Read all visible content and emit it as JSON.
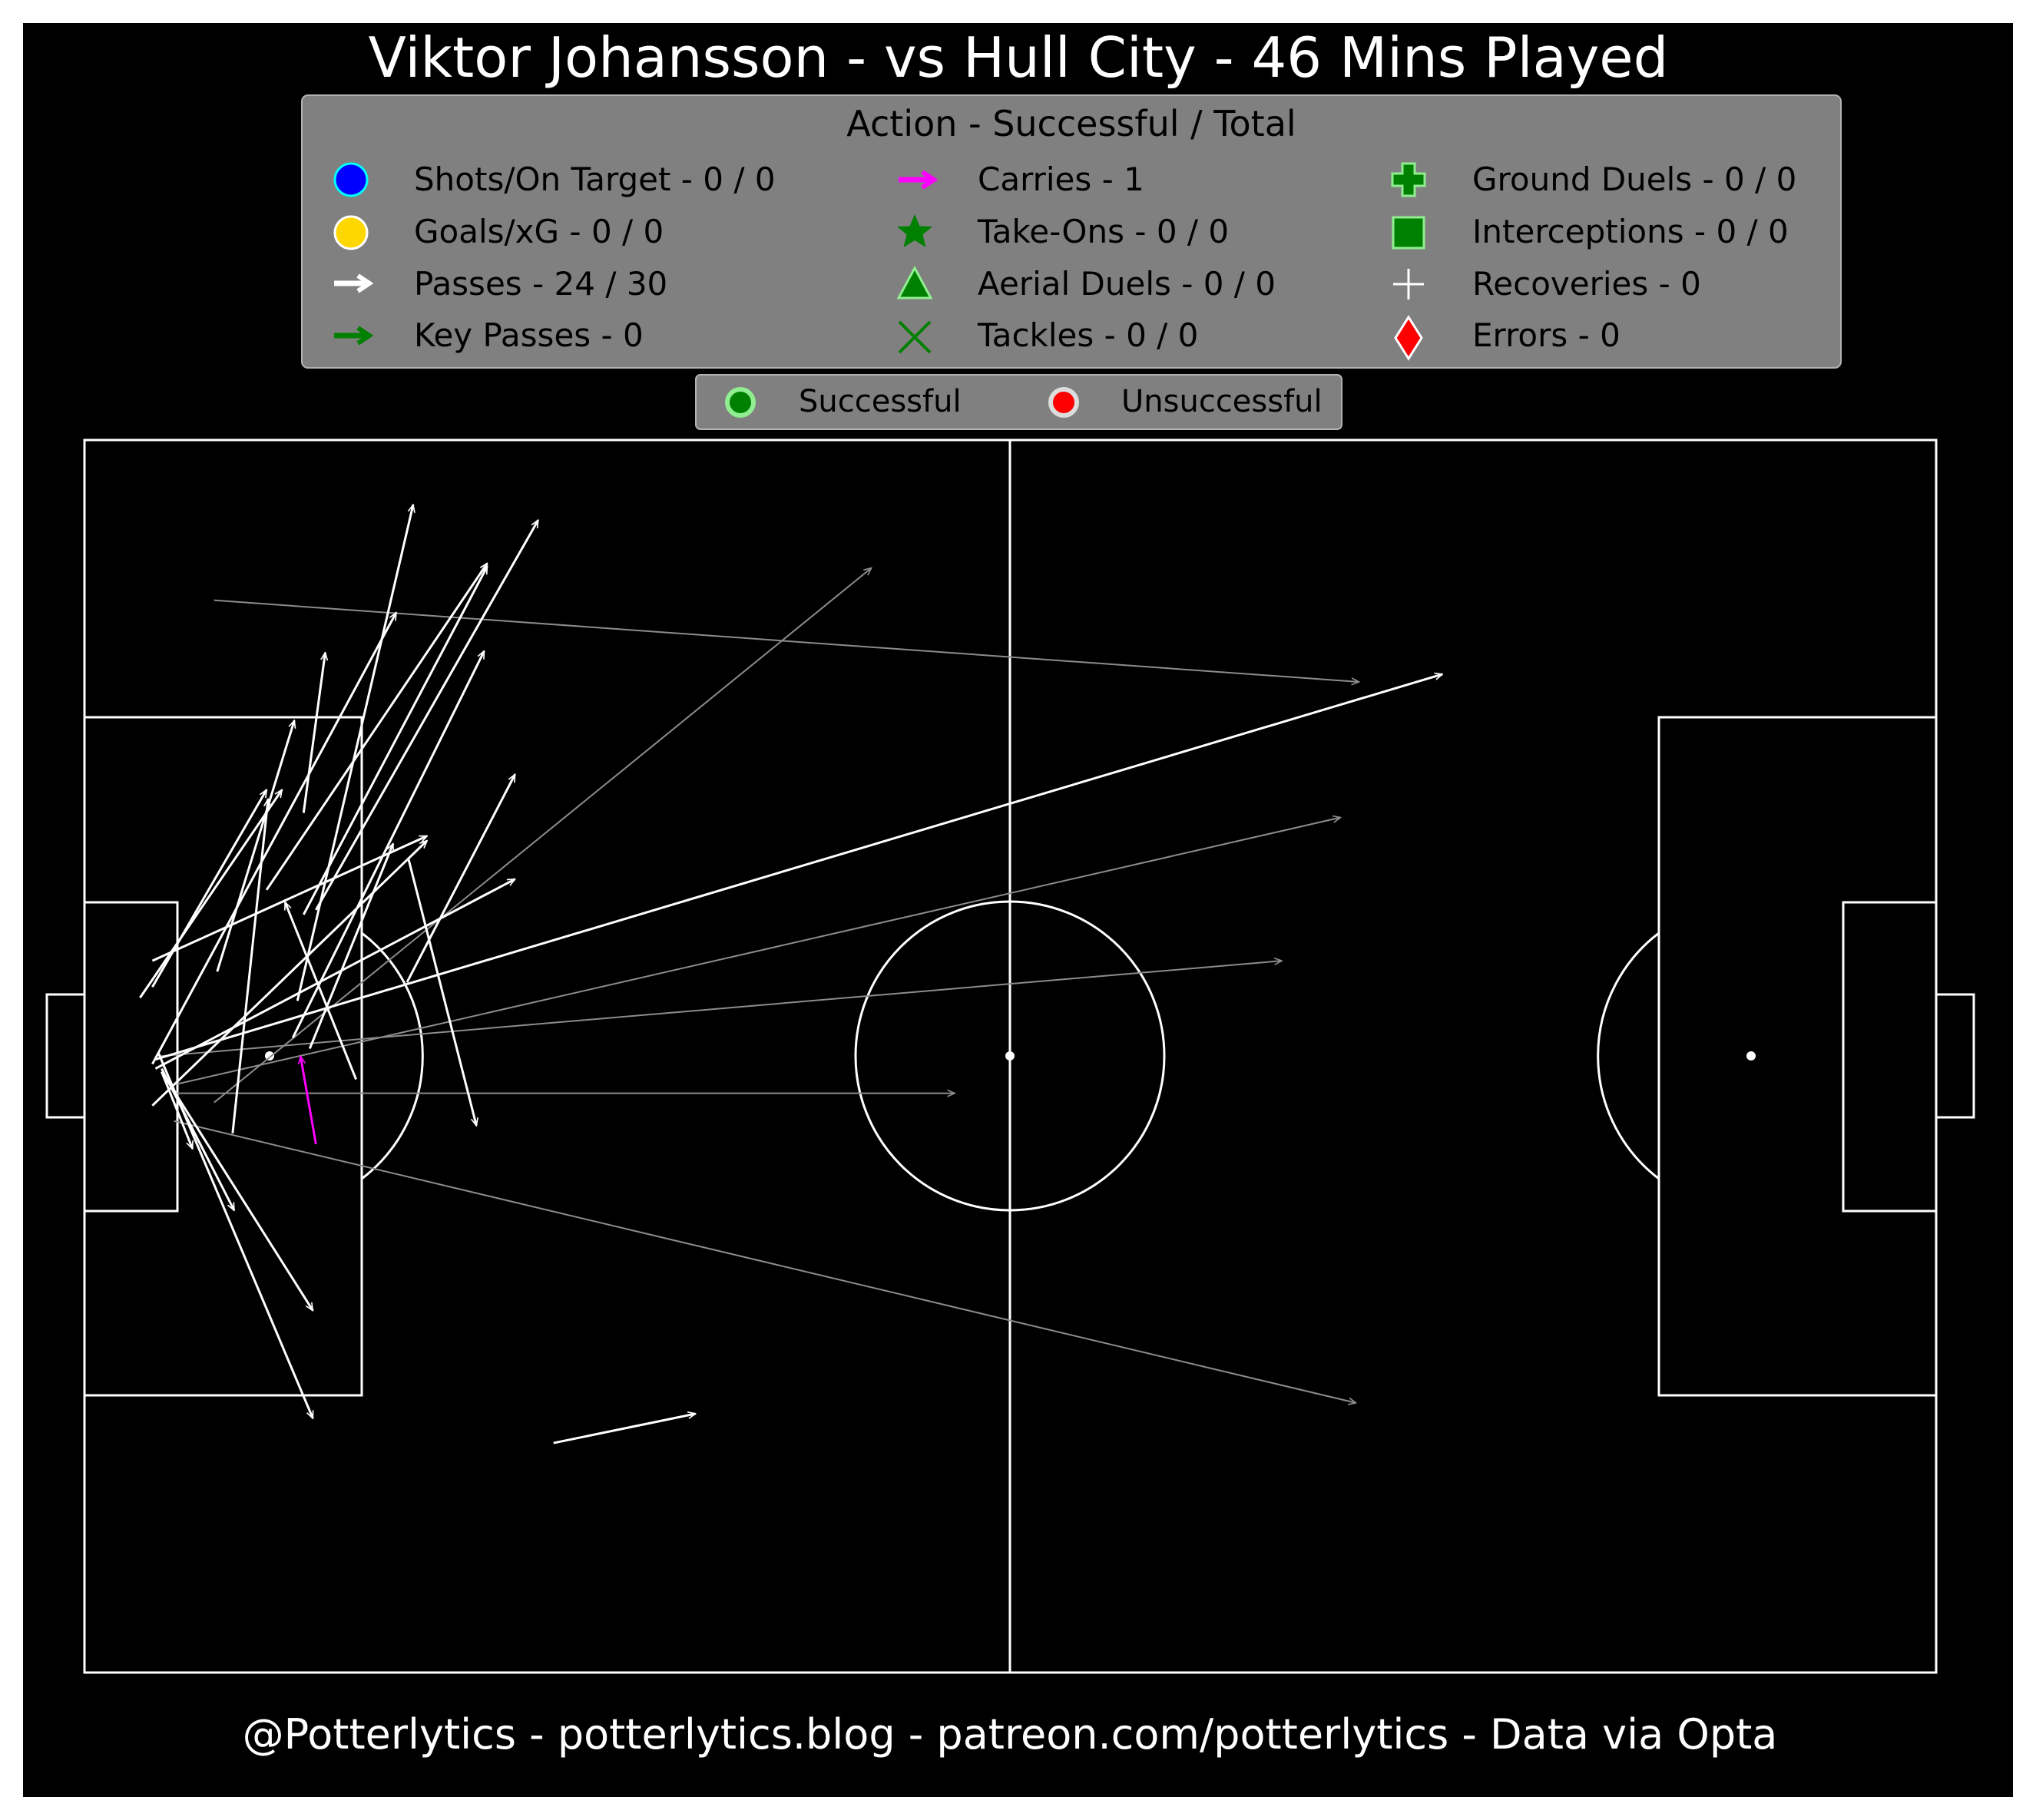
{
  "title": "Viktor Johansson - vs Hull City - 46 Mins Played",
  "footer": "@Potterlytics - potterlytics.blog - patreon.com/potterlytics - Data via Opta",
  "colors": {
    "background": "#000000",
    "legend_box": "#808080",
    "pass_successful": "#ffffff",
    "pass_unsuccessful": "#8c8c8c",
    "carry": "#ff00ff",
    "key_pass": "#008000",
    "shot": "#0000ff",
    "goal": "#ffd700",
    "error": "#ff0000"
  },
  "legend": {
    "title": "Action - Successful / Total",
    "items": [
      {
        "icon": "circle-blue-icon",
        "label": "Shots/On Target - 0 / 0"
      },
      {
        "icon": "circle-gold-icon",
        "label": "Goals/xG - 0 / 0"
      },
      {
        "icon": "arrow-white-icon",
        "label": "Passes - 24 / 30"
      },
      {
        "icon": "arrow-green-icon",
        "label": "Key Passes - 0"
      },
      {
        "icon": "arrow-magenta-icon",
        "label": "Carries - 1"
      },
      {
        "icon": "star-green-icon",
        "label": "Take-Ons - 0 / 0"
      },
      {
        "icon": "triangle-green-icon",
        "label": "Aerial Duels - 0 / 0"
      },
      {
        "icon": "x-green-icon",
        "label": "Tackles - 0 / 0"
      },
      {
        "icon": "plus-green-icon",
        "label": "Ground Duels - 0 / 0"
      },
      {
        "icon": "square-green-icon",
        "label": "Interceptions - 0 / 0"
      },
      {
        "icon": "plus-white-icon",
        "label": "Recoveries - 0"
      },
      {
        "icon": "diamond-red-icon",
        "label": "Errors - 0"
      }
    ]
  },
  "outcome_legend": {
    "successful": "Successful",
    "unsuccessful": "Unsuccessful"
  },
  "chart_data": {
    "type": "scatter",
    "pitch": {
      "length": 120,
      "width": 80,
      "attacking_direction": "left-to-right"
    },
    "passes_successful": [
      {
        "x": 4.4,
        "y": 36.8,
        "end_x": 22.2,
        "end_y": 54.0
      },
      {
        "x": 4.4,
        "y": 39.5,
        "end_x": 20.2,
        "end_y": 68.8
      },
      {
        "x": 4.6,
        "y": 39.8,
        "end_x": 88.0,
        "end_y": 64.8
      },
      {
        "x": 4.6,
        "y": 39.2,
        "end_x": 27.9,
        "end_y": 51.5
      },
      {
        "x": 4.8,
        "y": 40.2,
        "end_x": 14.8,
        "end_y": 16.5
      },
      {
        "x": 5.0,
        "y": 39.0,
        "end_x": 14.8,
        "end_y": 23.5
      },
      {
        "x": 5.0,
        "y": 39.2,
        "end_x": 9.7,
        "end_y": 30.0
      },
      {
        "x": 5.0,
        "y": 39.0,
        "end_x": 7.0,
        "end_y": 34.0
      },
      {
        "x": 4.4,
        "y": 44.5,
        "end_x": 11.8,
        "end_y": 57.3
      },
      {
        "x": 4.4,
        "y": 46.2,
        "end_x": 22.2,
        "end_y": 54.3
      },
      {
        "x": 3.6,
        "y": 43.8,
        "end_x": 12.8,
        "end_y": 57.3
      },
      {
        "x": 8.6,
        "y": 45.5,
        "end_x": 13.6,
        "end_y": 61.8
      },
      {
        "x": 14.6,
        "y": 40.5,
        "end_x": 20.0,
        "end_y": 53.8
      },
      {
        "x": 17.6,
        "y": 38.5,
        "end_x": 13.0,
        "end_y": 50.0
      },
      {
        "x": 14.2,
        "y": 55.8,
        "end_x": 15.6,
        "end_y": 66.2
      },
      {
        "x": 9.6,
        "y": 35.0,
        "end_x": 11.9,
        "end_y": 56.7
      },
      {
        "x": 13.8,
        "y": 43.6,
        "end_x": 21.3,
        "end_y": 75.8
      },
      {
        "x": 11.8,
        "y": 50.8,
        "end_x": 26.1,
        "end_y": 72.0
      },
      {
        "x": 13.5,
        "y": 41.2,
        "end_x": 25.9,
        "end_y": 66.3
      },
      {
        "x": 15.0,
        "y": 49.5,
        "end_x": 29.4,
        "end_y": 74.8
      },
      {
        "x": 21.0,
        "y": 52.8,
        "end_x": 25.4,
        "end_y": 35.5
      },
      {
        "x": 20.9,
        "y": 44.8,
        "end_x": 27.9,
        "end_y": 58.3
      },
      {
        "x": 14.2,
        "y": 49.2,
        "end_x": 26.1,
        "end_y": 71.8
      },
      {
        "x": 30.4,
        "y": 14.9,
        "end_x": 39.6,
        "end_y": 16.8
      }
    ],
    "passes_unsuccessful": [
      {
        "x": 4.8,
        "y": 40.0,
        "end_x": 77.6,
        "end_y": 46.2
      },
      {
        "x": 5.8,
        "y": 37.6,
        "end_x": 56.4,
        "end_y": 37.6
      },
      {
        "x": 8.4,
        "y": 37.0,
        "end_x": 51.0,
        "end_y": 71.7
      },
      {
        "x": 5.8,
        "y": 35.8,
        "end_x": 82.4,
        "end_y": 17.5
      },
      {
        "x": 8.4,
        "y": 69.6,
        "end_x": 82.6,
        "end_y": 64.3
      },
      {
        "x": 6.0,
        "y": 38.2,
        "end_x": 81.4,
        "end_y": 55.5
      }
    ],
    "carries": [
      {
        "x": 15.0,
        "y": 34.3,
        "end_x": 14.0,
        "end_y": 40.0
      }
    ],
    "key_passes": [],
    "shots": [],
    "goals": [],
    "take_ons": [],
    "aerial_duels": [],
    "tackles": [],
    "ground_duels": [],
    "interceptions": [],
    "recoveries": [],
    "errors": []
  }
}
